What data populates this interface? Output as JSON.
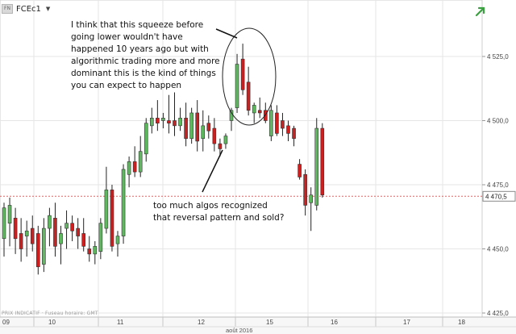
{
  "header": {
    "symbol": "FCEc1",
    "badge_text": "FN",
    "trend_icon": "green-arrow-up-icon"
  },
  "annotations": {
    "top_note": "I think that this squeeze before going lower wouldn't have happened 10 years ago but with algorithmic trading more and more dominant this is the kind of things you can expect to happen",
    "bottom_note": "too much algos recognized that reversal pattern and sold?"
  },
  "footer_text": "PRIX INDICATIF · Fuseau horaire: GMT",
  "colors": {
    "up": "#5fb85f",
    "down": "#cc1f1f",
    "grid": "#e6e6e6",
    "ref_line": "#e06060",
    "trend_icon": "#3aa040"
  },
  "chart_data": {
    "type": "candlestick",
    "title": "",
    "xlabel": "août 2016",
    "ylabel": "",
    "ylim": [
      4420,
      4550
    ],
    "y_ticks": [
      "4 525,0",
      "4 500,0",
      "4 475,0",
      "4 450,0",
      "4 425,0"
    ],
    "y_tick_values": [
      4525,
      4500,
      4475,
      4450,
      4425
    ],
    "current_price": 4470.5,
    "current_price_label": "4 470,5",
    "x_ticks": [
      "09",
      "10",
      "11",
      "12",
      "15",
      "16",
      "17",
      "18"
    ],
    "grid": true,
    "candles": [
      {
        "o": 4454,
        "h": 4468,
        "l": 4447,
        "c": 4466
      },
      {
        "o": 4460,
        "h": 4470,
        "l": 4451,
        "c": 4467
      },
      {
        "o": 4462,
        "h": 4466,
        "l": 4448,
        "c": 4454
      },
      {
        "o": 4456,
        "h": 4462,
        "l": 4445,
        "c": 4450
      },
      {
        "o": 4455,
        "h": 4461,
        "l": 4447,
        "c": 4457
      },
      {
        "o": 4458,
        "h": 4463,
        "l": 4449,
        "c": 4452
      },
      {
        "o": 4456,
        "h": 4459,
        "l": 4440,
        "c": 4443
      },
      {
        "o": 4444,
        "h": 4462,
        "l": 4441,
        "c": 4458
      },
      {
        "o": 4458,
        "h": 4466,
        "l": 4451,
        "c": 4463
      },
      {
        "o": 4462,
        "h": 4468,
        "l": 4447,
        "c": 4451
      },
      {
        "o": 4452,
        "h": 4459,
        "l": 4444,
        "c": 4456
      },
      {
        "o": 4458,
        "h": 4465,
        "l": 4450,
        "c": 4460
      },
      {
        "o": 4460,
        "h": 4463,
        "l": 4453,
        "c": 4457
      },
      {
        "o": 4458,
        "h": 4462,
        "l": 4450,
        "c": 4455
      },
      {
        "o": 4456,
        "h": 4462,
        "l": 4449,
        "c": 4451
      },
      {
        "o": 4450,
        "h": 4455,
        "l": 4445,
        "c": 4448
      },
      {
        "o": 4448,
        "h": 4453,
        "l": 4444,
        "c": 4451
      },
      {
        "o": 4449,
        "h": 4462,
        "l": 4446,
        "c": 4460
      },
      {
        "o": 4458,
        "h": 4482,
        "l": 4456,
        "c": 4473
      },
      {
        "o": 4473,
        "h": 4475,
        "l": 4449,
        "c": 4451
      },
      {
        "o": 4452,
        "h": 4457,
        "l": 4447,
        "c": 4455
      },
      {
        "o": 4455,
        "h": 4483,
        "l": 4452,
        "c": 4481
      },
      {
        "o": 4479,
        "h": 4486,
        "l": 4474,
        "c": 4484
      },
      {
        "o": 4484,
        "h": 4490,
        "l": 4478,
        "c": 4480
      },
      {
        "o": 4480,
        "h": 4494,
        "l": 4478,
        "c": 4488
      },
      {
        "o": 4487,
        "h": 4501,
        "l": 4484,
        "c": 4499
      },
      {
        "o": 4498,
        "h": 4505,
        "l": 4495,
        "c": 4501
      },
      {
        "o": 4501,
        "h": 4508,
        "l": 4496,
        "c": 4499
      },
      {
        "o": 4500,
        "h": 4503,
        "l": 4497,
        "c": 4501
      },
      {
        "o": 4500,
        "h": 4510,
        "l": 4495,
        "c": 4499
      },
      {
        "o": 4500,
        "h": 4511,
        "l": 4494,
        "c": 4498
      },
      {
        "o": 4498,
        "h": 4505,
        "l": 4496,
        "c": 4501
      },
      {
        "o": 4501,
        "h": 4507,
        "l": 4490,
        "c": 4493
      },
      {
        "o": 4493,
        "h": 4505,
        "l": 4491,
        "c": 4503
      },
      {
        "o": 4503,
        "h": 4508,
        "l": 4488,
        "c": 4492
      },
      {
        "o": 4493,
        "h": 4504,
        "l": 4488,
        "c": 4498
      },
      {
        "o": 4499,
        "h": 4502,
        "l": 4493,
        "c": 4496
      },
      {
        "o": 4497,
        "h": 4501,
        "l": 4488,
        "c": 4491
      },
      {
        "o": 4491,
        "h": 4493,
        "l": 4486,
        "c": 4489
      },
      {
        "o": 4491,
        "h": 4495,
        "l": 4489,
        "c": 4494
      },
      {
        "o": 4500,
        "h": 4505,
        "l": 4496,
        "c": 4504
      },
      {
        "o": 4505,
        "h": 4526,
        "l": 4503,
        "c": 4522
      },
      {
        "o": 4524,
        "h": 4530,
        "l": 4510,
        "c": 4512
      },
      {
        "o": 4515,
        "h": 4521,
        "l": 4502,
        "c": 4504
      },
      {
        "o": 4503,
        "h": 4507,
        "l": 4499,
        "c": 4506
      },
      {
        "o": 4504,
        "h": 4509,
        "l": 4501,
        "c": 4503
      },
      {
        "o": 4504,
        "h": 4507,
        "l": 4499,
        "c": 4500
      },
      {
        "o": 4494,
        "h": 4506,
        "l": 4492,
        "c": 4504
      },
      {
        "o": 4503,
        "h": 4506,
        "l": 4494,
        "c": 4495
      },
      {
        "o": 4500,
        "h": 4503,
        "l": 4494,
        "c": 4497
      },
      {
        "o": 4498,
        "h": 4500,
        "l": 4492,
        "c": 4495
      },
      {
        "o": 4497,
        "h": 4498,
        "l": 4490,
        "c": 4493
      },
      {
        "o": 4483,
        "h": 4485,
        "l": 4477,
        "c": 4478
      },
      {
        "o": 4479,
        "h": 4481,
        "l": 4463,
        "c": 4467
      },
      {
        "o": 4468,
        "h": 4474,
        "l": 4457,
        "c": 4471
      },
      {
        "o": 4467,
        "h": 4501,
        "l": 4465,
        "c": 4497
      },
      {
        "o": 4497,
        "h": 4499,
        "l": 4470,
        "c": 4471
      }
    ]
  }
}
